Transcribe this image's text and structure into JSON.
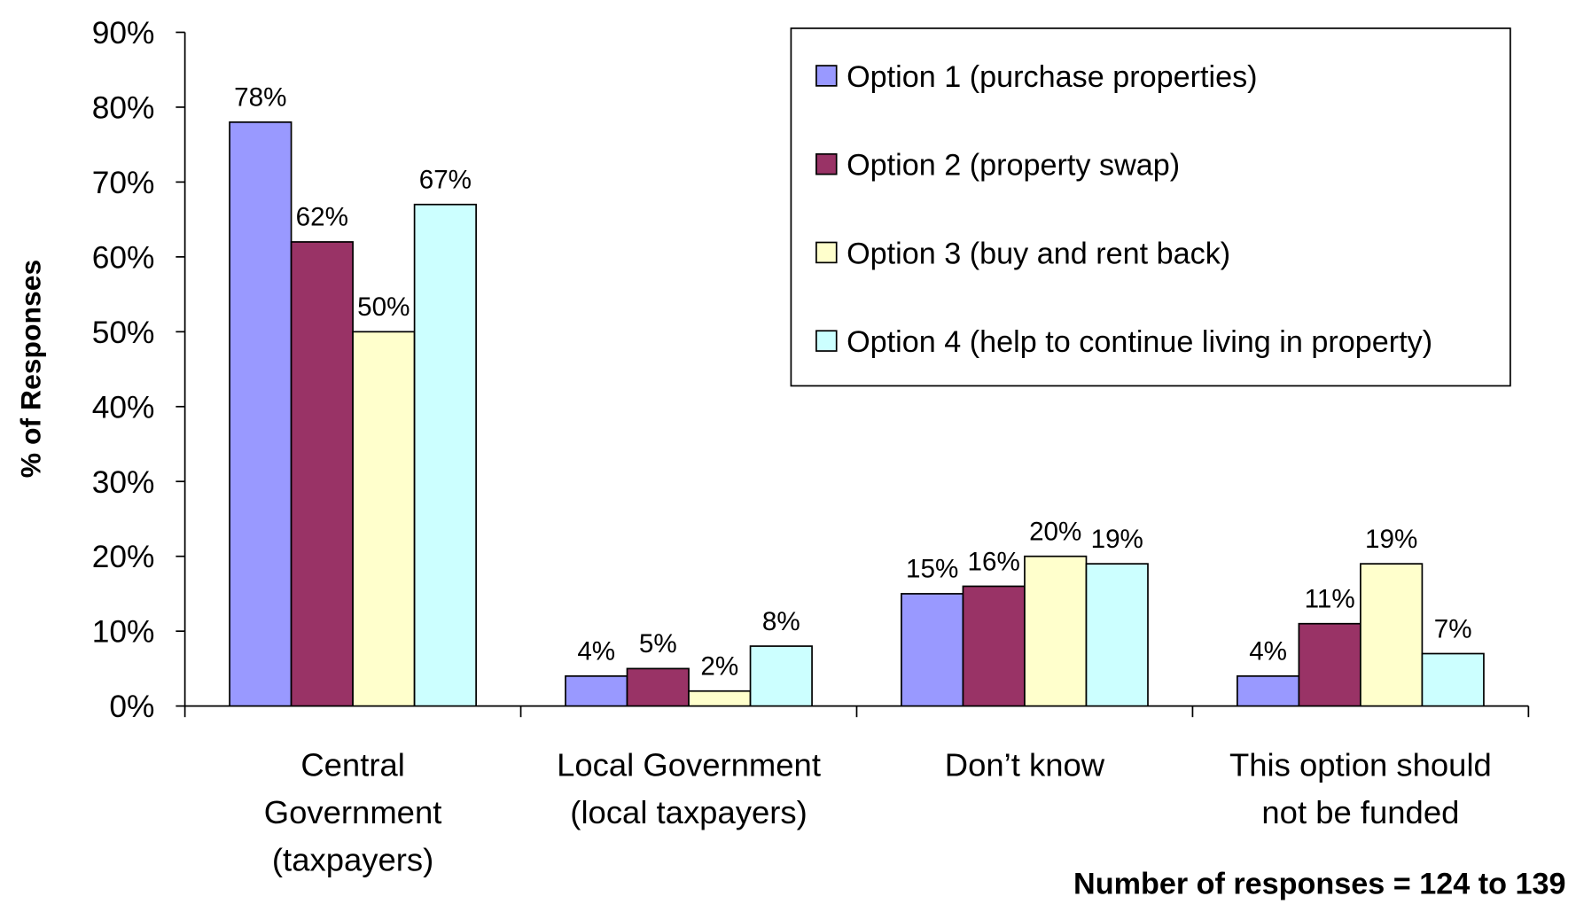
{
  "chart_data": {
    "type": "bar",
    "categories": [
      "Central\nGovernment\n(taxpayers)",
      "Local Government\n(local taxpayers)",
      "Don’t know",
      "This option should\nnot be funded"
    ],
    "series": [
      {
        "name": "Option 1 (purchase properties)",
        "color": "#9999ff",
        "values": [
          78,
          4,
          15,
          4
        ]
      },
      {
        "name": "Option 2 (property swap)",
        "color": "#993366",
        "values": [
          62,
          5,
          16,
          11
        ]
      },
      {
        "name": "Option 3 (buy and rent back)",
        "color": "#ffffcc",
        "values": [
          50,
          2,
          20,
          19
        ]
      },
      {
        "name": "Option 4 (help to continue living in property)",
        "color": "#ccffff",
        "values": [
          67,
          8,
          19,
          7
        ]
      }
    ],
    "value_labels": [
      [
        "78%",
        "4%",
        "15%",
        "4%"
      ],
      [
        "62%",
        "5%",
        "16%",
        "11%"
      ],
      [
        "50%",
        "2%",
        "20%",
        "19%"
      ],
      [
        "67%",
        "8%",
        "19%",
        "7%"
      ]
    ],
    "ylabel": "% of Responses",
    "ylim": [
      0,
      90
    ],
    "yticks": [
      {
        "value": 0,
        "label": "0%"
      },
      {
        "value": 10,
        "label": "10%"
      },
      {
        "value": 20,
        "label": "20%"
      },
      {
        "value": 30,
        "label": "30%"
      },
      {
        "value": 40,
        "label": "40%"
      },
      {
        "value": 50,
        "label": "50%"
      },
      {
        "value": 60,
        "label": "60%"
      },
      {
        "value": 70,
        "label": "70%"
      },
      {
        "value": 80,
        "label": "80%"
      },
      {
        "value": 90,
        "label": "90%"
      }
    ],
    "legend": "upper right",
    "grid": false,
    "note": "Number of responses = 124 to 139"
  }
}
